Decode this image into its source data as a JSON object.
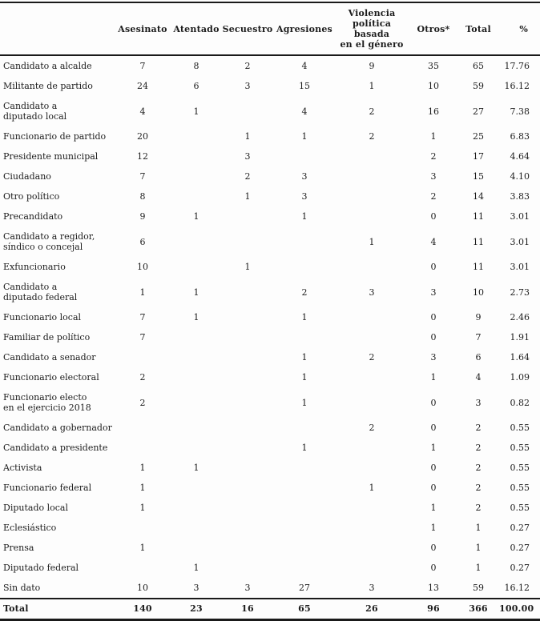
{
  "table": {
    "row_header_label": "",
    "columns": [
      "Asesinato",
      "Atentado",
      "Secuestro",
      "Agresiones",
      "Violencia\npolítica basada\nen el género",
      "Otros*",
      "Total",
      "%"
    ],
    "rows": [
      {
        "label": "Candidato a alcalde",
        "values": [
          "7",
          "8",
          "2",
          "4",
          "9",
          "35",
          "65",
          "17.76"
        ]
      },
      {
        "label": "Militante de partido",
        "values": [
          "24",
          "6",
          "3",
          "15",
          "1",
          "10",
          "59",
          "16.12"
        ]
      },
      {
        "label": "Candidato a\ndiputado local",
        "values": [
          "4",
          "1",
          "",
          "4",
          "2",
          "16",
          "27",
          "7.38"
        ]
      },
      {
        "label": "Funcionario de partido",
        "values": [
          "20",
          "",
          "1",
          "1",
          "2",
          "1",
          "25",
          "6.83"
        ]
      },
      {
        "label": "Presidente municipal",
        "values": [
          "12",
          "",
          "3",
          "",
          "",
          "2",
          "17",
          "4.64"
        ]
      },
      {
        "label": "Ciudadano",
        "values": [
          "7",
          "",
          "2",
          "3",
          "",
          "3",
          "15",
          "4.10"
        ]
      },
      {
        "label": "Otro político",
        "values": [
          "8",
          "",
          "1",
          "3",
          "",
          "2",
          "14",
          "3.83"
        ]
      },
      {
        "label": "Precandidato",
        "values": [
          "9",
          "1",
          "",
          "1",
          "",
          "0",
          "11",
          "3.01"
        ]
      },
      {
        "label": "Candidato a regidor,\nsíndico o concejal",
        "values": [
          "6",
          "",
          "",
          "",
          "1",
          "4",
          "11",
          "3.01"
        ]
      },
      {
        "label": "Exfuncionario",
        "values": [
          "10",
          "",
          "1",
          "",
          "",
          "0",
          "11",
          "3.01"
        ]
      },
      {
        "label": "Candidato a\ndiputado federal",
        "values": [
          "1",
          "1",
          "",
          "2",
          "3",
          "3",
          "10",
          "2.73"
        ]
      },
      {
        "label": "Funcionario local",
        "values": [
          "7",
          "1",
          "",
          "1",
          "",
          "0",
          "9",
          "2.46"
        ]
      },
      {
        "label": "Familiar de político",
        "values": [
          "7",
          "",
          "",
          "",
          "",
          "0",
          "7",
          "1.91"
        ]
      },
      {
        "label": "Candidato a senador",
        "values": [
          "",
          "",
          "",
          "1",
          "2",
          "3",
          "6",
          "1.64"
        ]
      },
      {
        "label": "Funcionario electoral",
        "values": [
          "2",
          "",
          "",
          "1",
          "",
          "1",
          "4",
          "1.09"
        ]
      },
      {
        "label": "Funcionario electo\nen el ejercicio 2018",
        "values": [
          "2",
          "",
          "",
          "1",
          "",
          "0",
          "3",
          "0.82"
        ]
      },
      {
        "label": "Candidato a gobernador",
        "values": [
          "",
          "",
          "",
          "",
          "2",
          "0",
          "2",
          "0.55"
        ]
      },
      {
        "label": "Candidato a presidente",
        "values": [
          "",
          "",
          "",
          "1",
          "",
          "1",
          "2",
          "0.55"
        ]
      },
      {
        "label": "Activista",
        "values": [
          "1",
          "1",
          "",
          "",
          "",
          "0",
          "2",
          "0.55"
        ]
      },
      {
        "label": "Funcionario federal",
        "values": [
          "1",
          "",
          "",
          "",
          "1",
          "0",
          "2",
          "0.55"
        ]
      },
      {
        "label": "Diputado local",
        "values": [
          "1",
          "",
          "",
          "",
          "",
          "1",
          "2",
          "0.55"
        ]
      },
      {
        "label": "Eclesiástico",
        "values": [
          "",
          "",
          "",
          "",
          "",
          "1",
          "1",
          "0.27"
        ]
      },
      {
        "label": "Prensa",
        "values": [
          "1",
          "",
          "",
          "",
          "",
          "0",
          "1",
          "0.27"
        ]
      },
      {
        "label": "Diputado federal",
        "values": [
          "",
          "1",
          "",
          "",
          "",
          "0",
          "1",
          "0.27"
        ]
      },
      {
        "label": "Sin dato",
        "values": [
          "10",
          "3",
          "3",
          "27",
          "3",
          "13",
          "59",
          "16.12"
        ]
      }
    ],
    "total_row": {
      "label": "Total",
      "values": [
        "140",
        "23",
        "16",
        "65",
        "26",
        "96",
        "366",
        "100.00"
      ]
    }
  },
  "colors": {
    "text": "#1c1c1c",
    "rule": "#1a1a1a",
    "background": "#fdfdfd"
  }
}
